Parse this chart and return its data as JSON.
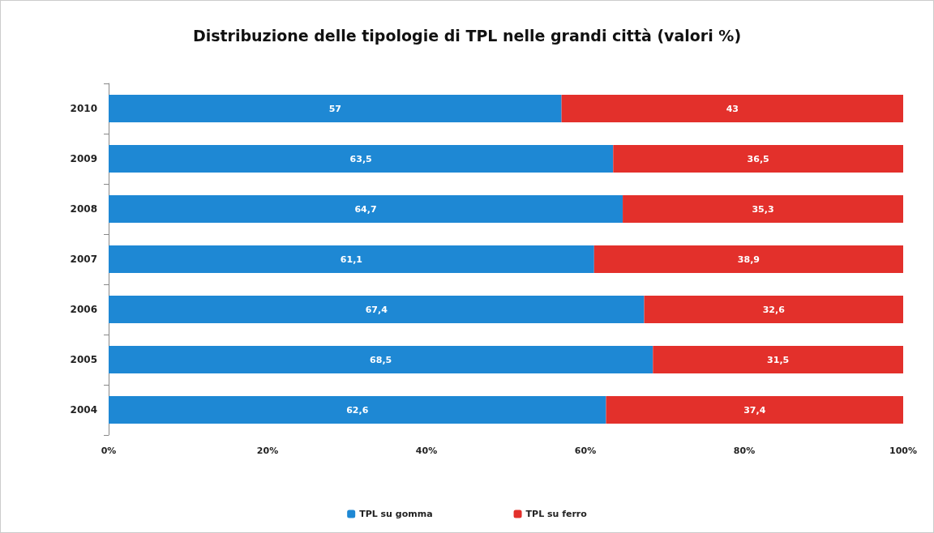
{
  "chart_data": {
    "type": "bar",
    "title": "Distribuzione delle tipologie di TPL nelle grandi città (valori %)",
    "orientation": "horizontal",
    "stacked": true,
    "categories": [
      "2010",
      "2009",
      "2008",
      "2007",
      "2006",
      "2005",
      "2004"
    ],
    "series": [
      {
        "name": "TPL su gomma",
        "color": "#1e88d4",
        "values": [
          57,
          63.5,
          64.7,
          61.1,
          67.4,
          68.5,
          62.6
        ],
        "value_labels": [
          "57",
          "63,5",
          "64,7",
          "61,1",
          "67,4",
          "68,5",
          "62,6"
        ]
      },
      {
        "name": "TPL su ferro",
        "color": "#e3302b",
        "values": [
          43,
          36.5,
          35.3,
          38.9,
          32.6,
          31.5,
          37.4
        ],
        "value_labels": [
          "43",
          "36,5",
          "35,3",
          "38,9",
          "32,6",
          "31,5",
          "37,4"
        ]
      }
    ],
    "xlim": [
      0,
      100
    ],
    "xticks": [
      {
        "value": 0,
        "label": "0%"
      },
      {
        "value": 20,
        "label": "20%"
      },
      {
        "value": 40,
        "label": "40%"
      },
      {
        "value": 60,
        "label": "60%"
      },
      {
        "value": 80,
        "label": "80%"
      },
      {
        "value": 100,
        "label": "100%"
      }
    ],
    "grid": false,
    "legend": "bottom"
  }
}
